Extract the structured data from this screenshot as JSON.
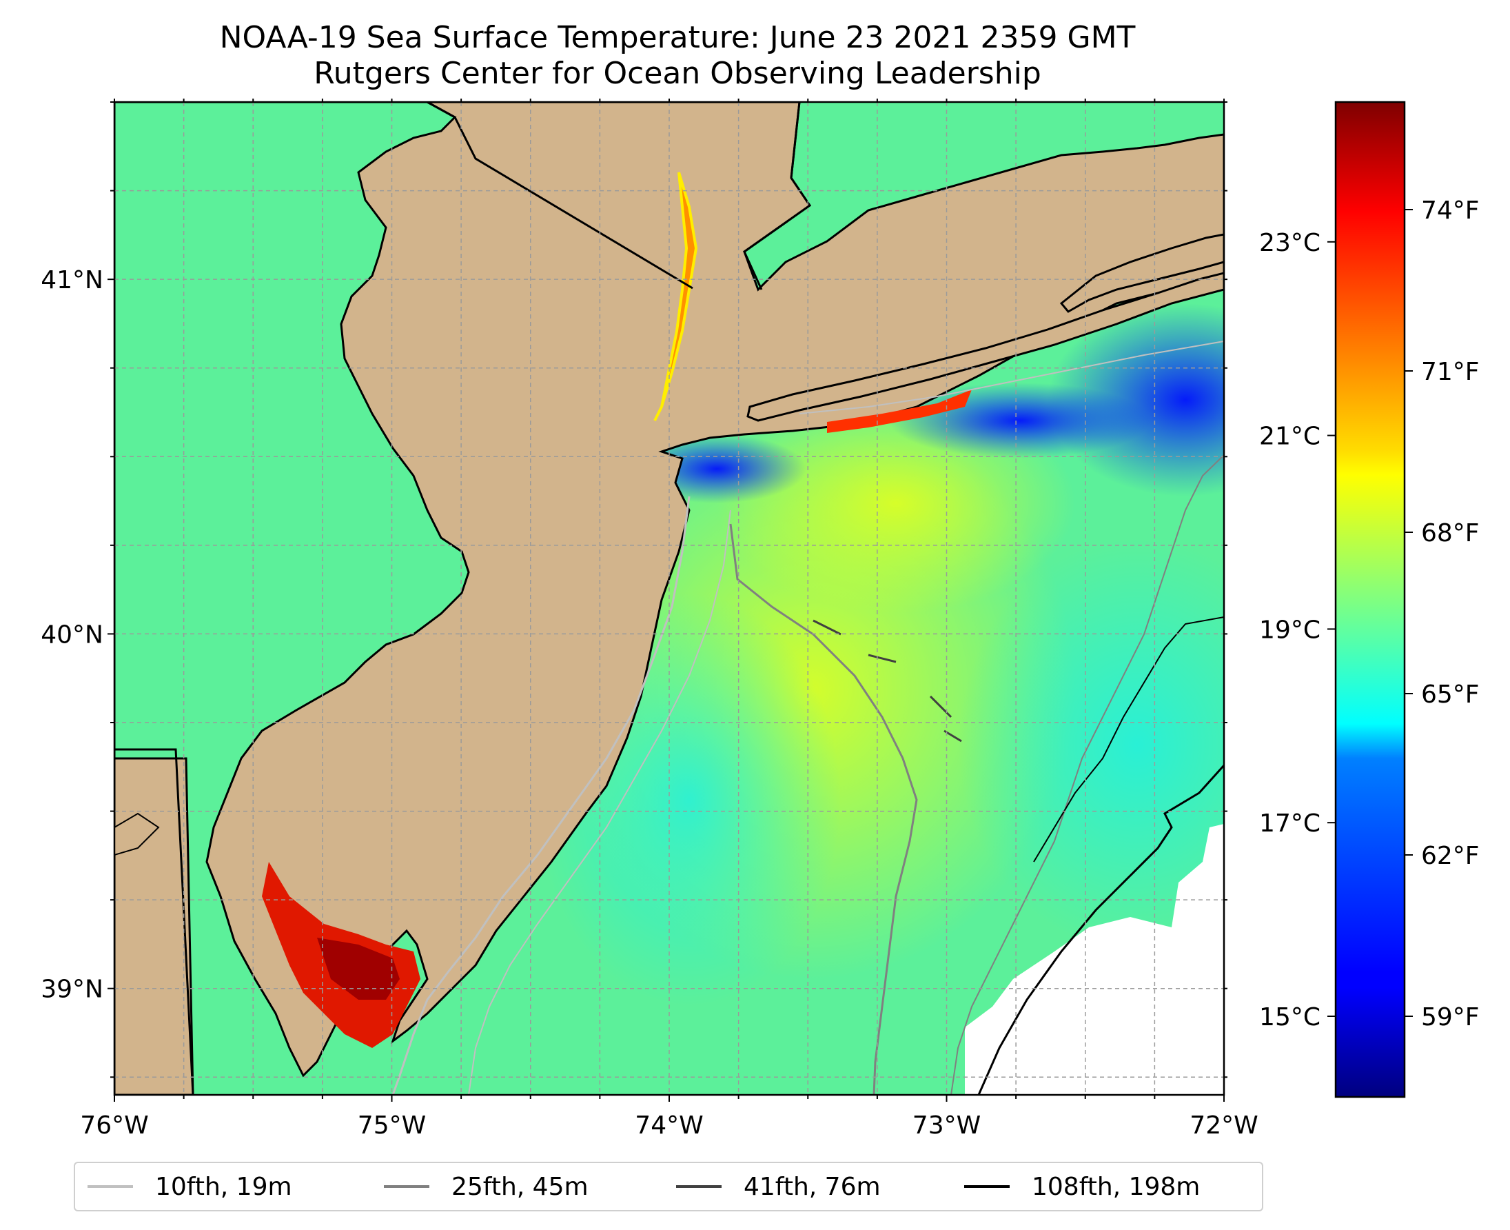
{
  "title": {
    "line1": "NOAA-19 Sea Surface Temperature: June 23 2021 2359 GMT",
    "line2": "Rutgers Center for Ocean Observing Leadership"
  },
  "map": {
    "lon_range": [
      -76,
      -72
    ],
    "lat_range": [
      38.7,
      41.5
    ],
    "lon_ticks": [
      {
        "value": -76,
        "label": "76°W"
      },
      {
        "value": -75,
        "label": "75°W"
      },
      {
        "value": -74,
        "label": "74°W"
      },
      {
        "value": -73,
        "label": "73°W"
      },
      {
        "value": -72,
        "label": "72°W"
      }
    ],
    "lat_ticks": [
      {
        "value": 41,
        "label": "41°N"
      },
      {
        "value": 40,
        "label": "40°N"
      },
      {
        "value": 39,
        "label": "39°N"
      }
    ],
    "gridlines": true,
    "land_color": "#d2b48c",
    "cloud_mask_color": "#ffffff"
  },
  "colorbar": {
    "colormap": "jet",
    "celsius_ticks": [
      {
        "value": 15,
        "label": "15°C"
      },
      {
        "value": 17,
        "label": "17°C"
      },
      {
        "value": 19,
        "label": "19°C"
      },
      {
        "value": 21,
        "label": "21°C"
      },
      {
        "value": 23,
        "label": "23°C"
      }
    ],
    "fahrenheit_ticks": [
      {
        "value": 59,
        "label": "59°F"
      },
      {
        "value": 62,
        "label": "62°F"
      },
      {
        "value": 65,
        "label": "65°F"
      },
      {
        "value": 68,
        "label": "68°F"
      },
      {
        "value": 71,
        "label": "71°F"
      },
      {
        "value": 74,
        "label": "74°F"
      }
    ]
  },
  "legend": {
    "items": [
      {
        "label": "10fth, 19m",
        "color": "#c0c0c0"
      },
      {
        "label": "25fth, 45m",
        "color": "#808080"
      },
      {
        "label": "41fth, 76m",
        "color": "#404040"
      },
      {
        "label": "108fth, 198m",
        "color": "#000000"
      }
    ]
  }
}
